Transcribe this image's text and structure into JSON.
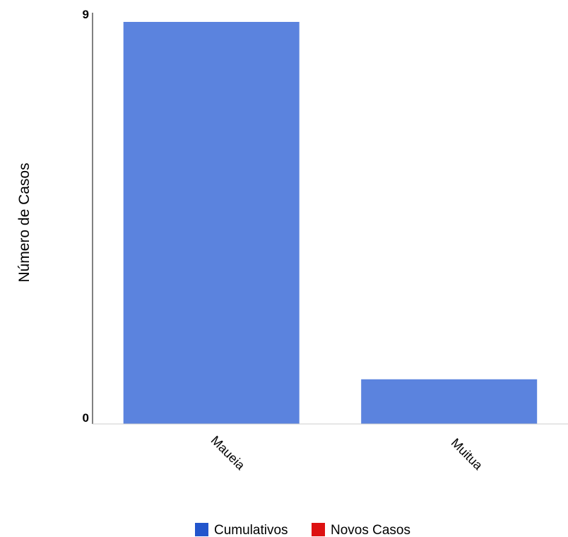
{
  "chart_data": {
    "type": "bar",
    "categories": [
      "Maueia",
      "Muitua"
    ],
    "series": [
      {
        "name": "Cumulativos",
        "values": [
          9,
          1
        ]
      },
      {
        "name": "Novos Casos",
        "values": [
          0,
          0
        ]
      }
    ],
    "title": "",
    "xlabel": "",
    "ylabel": "Número de Casos",
    "ylim": [
      0,
      9
    ],
    "yticks": [
      "0",
      "9"
    ],
    "grid": false,
    "legend_position": "bottom"
  },
  "legend": [
    {
      "label": "Cumulativos",
      "color": "#2255cc"
    },
    {
      "label": "Novos Casos",
      "color": "#dd1111"
    }
  ],
  "colors": {
    "bar_fill": "#5b83de",
    "axis": "#000000"
  }
}
